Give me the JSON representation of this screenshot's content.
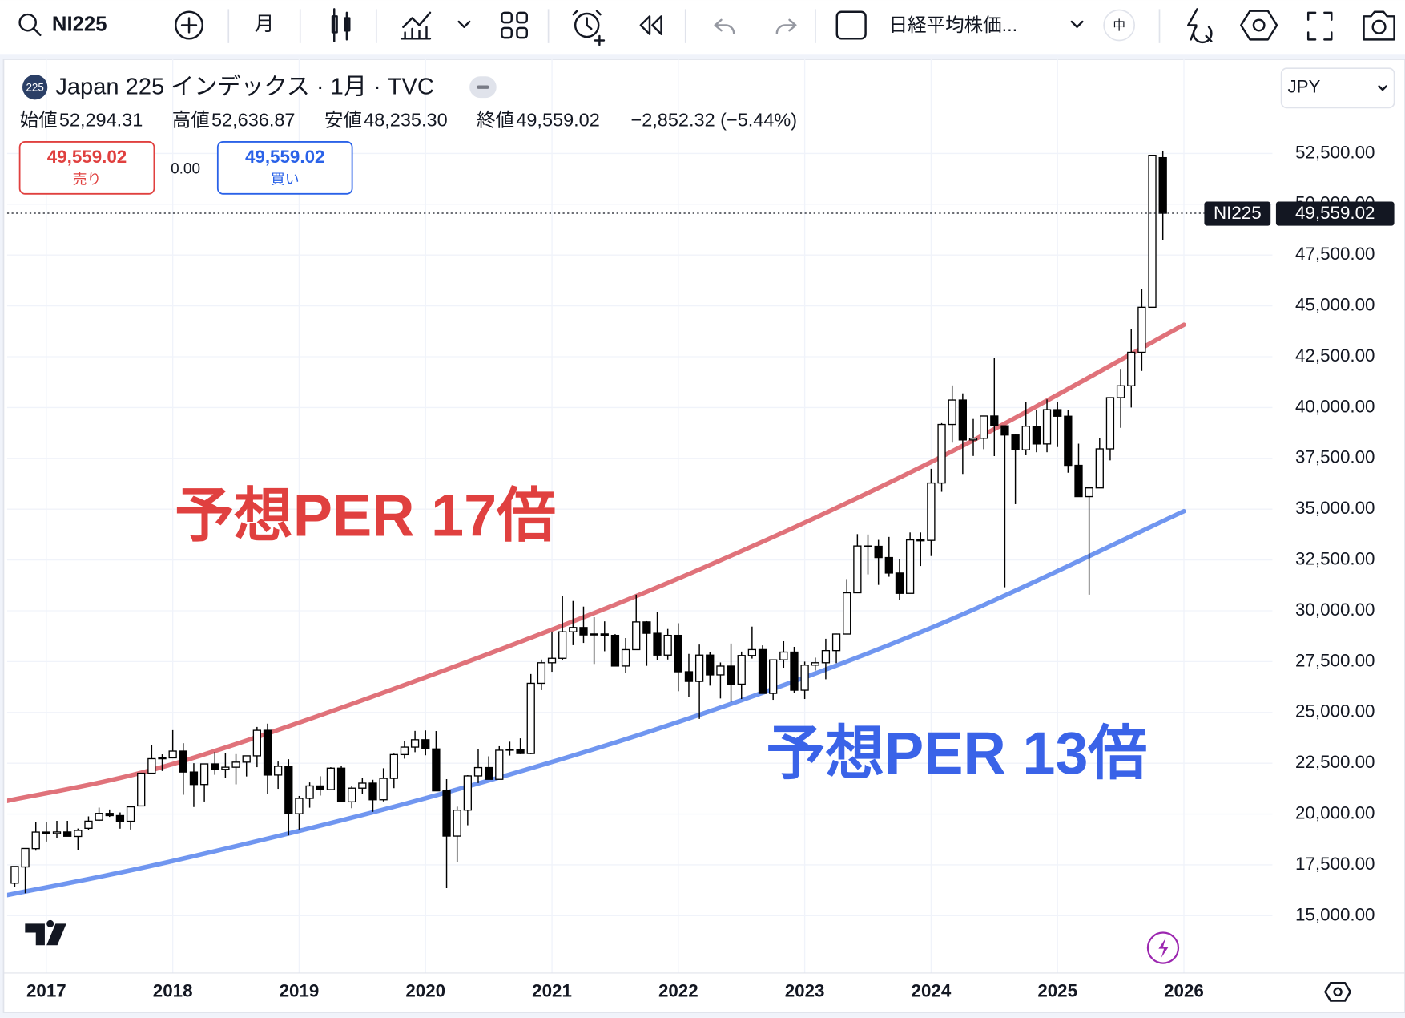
{
  "toolbar": {
    "symbol": "NI225",
    "interval": "月",
    "chart_name": "日経平均株価...",
    "size": "中"
  },
  "legend": {
    "badge": "225",
    "title": "Japan 225 インデックス · 1月 · TVC",
    "ohlc": [
      {
        "label": "始値",
        "value": "52,294.31"
      },
      {
        "label": "高値",
        "value": "52,636.87"
      },
      {
        "label": "安値",
        "value": "48,235.30"
      },
      {
        "label": "終値",
        "value": "49,559.02"
      }
    ],
    "change": "−2,852.32 (−5.44%)"
  },
  "trade": {
    "sell_price": "49,559.02",
    "sell": "売り",
    "spread": "0.00",
    "buy_price": "49,559.02",
    "buy": "買い"
  },
  "currency": "JPY",
  "chart_data": {
    "type": "candlestick",
    "x": [
      "2016-10",
      "2016-11",
      "2016-12",
      "2017-01",
      "2017-02",
      "2017-03",
      "2017-04",
      "2017-05",
      "2017-06",
      "2017-07",
      "2017-08",
      "2017-09",
      "2017-10",
      "2017-11",
      "2017-12",
      "2018-01",
      "2018-02",
      "2018-03",
      "2018-04",
      "2018-05",
      "2018-06",
      "2018-07",
      "2018-08",
      "2018-09",
      "2018-10",
      "2018-11",
      "2018-12",
      "2019-01",
      "2019-02",
      "2019-03",
      "2019-04",
      "2019-05",
      "2019-06",
      "2019-07",
      "2019-08",
      "2019-09",
      "2019-10",
      "2019-11",
      "2019-12",
      "2020-01",
      "2020-02",
      "2020-03",
      "2020-04",
      "2020-05",
      "2020-06",
      "2020-07",
      "2020-08",
      "2020-09",
      "2020-10",
      "2020-11",
      "2020-12",
      "2021-01",
      "2021-02",
      "2021-03",
      "2021-04",
      "2021-05",
      "2021-06",
      "2021-07",
      "2021-08",
      "2021-09",
      "2021-10",
      "2021-11",
      "2021-12",
      "2022-01",
      "2022-02",
      "2022-03",
      "2022-04",
      "2022-05",
      "2022-06",
      "2022-07",
      "2022-08",
      "2022-09",
      "2022-10",
      "2022-11",
      "2022-12",
      "2023-01",
      "2023-02",
      "2023-03",
      "2023-04",
      "2023-05",
      "2023-06",
      "2023-07",
      "2023-08",
      "2023-09",
      "2023-10",
      "2023-11",
      "2023-12",
      "2024-01",
      "2024-02",
      "2024-03",
      "2024-04",
      "2024-05",
      "2024-06",
      "2024-07",
      "2024-08",
      "2024-09",
      "2024-10",
      "2024-11",
      "2024-12",
      "2025-01",
      "2025-02",
      "2025-03",
      "2025-04",
      "2025-05",
      "2025-06",
      "2025-07",
      "2025-08",
      "2025-09",
      "2025-10",
      "2025-11"
    ],
    "open": [
      16600,
      17400,
      18300,
      19114,
      19041,
      19119,
      18900,
      19300,
      19700,
      20033,
      19925,
      19646,
      20400,
      22011,
      22725,
      22765,
      23098,
      22068,
      21454,
      22467,
      22202,
      22305,
      22553,
      22865,
      24120,
      21920,
      22351,
      20015,
      20773,
      21385,
      21206,
      22259,
      20601,
      21276,
      21522,
      20704,
      21756,
      22927,
      23294,
      23657,
      23205,
      21143,
      18917,
      20193,
      21878,
      22288,
      21710,
      23140,
      23185,
      22977,
      26433,
      27444,
      27663,
      28966,
      29178,
      28812,
      28860,
      28791,
      27283,
      28089,
      29452,
      28892,
      27821,
      28791,
      27001,
      26526,
      27821,
      26847,
      27279,
      26393,
      27801,
      28091,
      25937,
      27587,
      27968,
      26094,
      27327,
      27445,
      28041,
      28856,
      30887,
      33189,
      33172,
      32619,
      31857,
      30858,
      33486,
      33464,
      36286,
      39166,
      40369,
      38405,
      38487,
      39583,
      39101,
      38647,
      37919,
      39081,
      38208,
      39894,
      39572,
      37155,
      35617,
      36045,
      37965,
      40487,
      41069,
      42718,
      44932,
      52294
    ],
    "high": [
      17425,
      18308,
      19592,
      19615,
      19668,
      19668,
      19289,
      19883,
      20318,
      20225,
      20080,
      20400,
      22011,
      23382,
      22939,
      24129,
      23486,
      22502,
      22467,
      23050,
      23011,
      22949,
      22869,
      24286,
      24448,
      22583,
      22698,
      20892,
      21556,
      21860,
      22307,
      22362,
      21400,
      21784,
      21688,
      22255,
      22974,
      23608,
      24091,
      24115,
      24083,
      21719,
      20365,
      21916,
      23178,
      22843,
      23338,
      23559,
      23725,
      26890,
      27602,
      28979,
      30714,
      30485,
      30208,
      29685,
      29480,
      28852,
      28659,
      30795,
      29489,
      29960,
      29106,
      29388,
      27880,
      28338,
      27979,
      27458,
      28389,
      27993,
      29222,
      28300,
      27587,
      28502,
      28226,
      27500,
      27696,
      28623,
      28879,
      31560,
      33772,
      33753,
      33488,
      33634,
      32533,
      33853,
      33853,
      36984,
      39233,
      41087,
      40697,
      39437,
      39583,
      42426,
      39101,
      38700,
      40257,
      39884,
      40398,
      40279,
      39866,
      38220,
      36000,
      38494,
      40487,
      41900,
      43876,
      45852,
      52411,
      52636
    ],
    "low": [
      16400,
      16111,
      18200,
      18650,
      18805,
      18909,
      18224,
      19235,
      19661,
      19862,
      19280,
      19239,
      20400,
      21972,
      22119,
      22765,
      20950,
      20347,
      20617,
      21931,
      21788,
      21462,
      21851,
      22307,
      20971,
      21243,
      18948,
      19241,
      20315,
      20911,
      21206,
      20601,
      20289,
      21003,
      20110,
      20625,
      21276,
      22726,
      23044,
      22892,
      21142,
      16358,
      17646,
      19448,
      21529,
      21710,
      21710,
      22878,
      22948,
      22948,
      26098,
      27000,
      27585,
      28308,
      28419,
      27385,
      28010,
      27272,
      26954,
      28089,
      27293,
      27588,
      27602,
      26044,
      25775,
      24681,
      26319,
      25688,
      25520,
      25661,
      27650,
      25937,
      25621,
      27199,
      25953,
      25661,
      27062,
      26632,
      27427,
      28856,
      30887,
      31791,
      31275,
      31674,
      30538,
      30858,
      32205,
      32693,
      35854,
      38271,
      36733,
      37617,
      37950,
      37611,
      31156,
      35247,
      37651,
      37800,
      37800,
      38055,
      36793,
      35617,
      30792,
      36045,
      37400,
      39000,
      40000,
      41800,
      44932,
      48235
    ],
    "close": [
      17425,
      18308,
      19114,
      19041,
      19119,
      18909,
      19197,
      19651,
      20033,
      19925,
      19646,
      20356,
      22011,
      22725,
      22765,
      23098,
      22068,
      21454,
      22467,
      22202,
      22305,
      22553,
      22865,
      24120,
      21920,
      22351,
      20015,
      20773,
      21385,
      21206,
      22259,
      20601,
      21276,
      21522,
      20704,
      21756,
      22927,
      23294,
      23657,
      23205,
      21143,
      18917,
      20193,
      21878,
      22288,
      21710,
      23140,
      23185,
      22977,
      26433,
      27444,
      27663,
      28966,
      29178,
      28812,
      28860,
      28791,
      27283,
      28089,
      29452,
      28892,
      27821,
      28791,
      27001,
      26526,
      27821,
      26847,
      27279,
      26393,
      27801,
      28091,
      25937,
      27587,
      27968,
      26094,
      27327,
      27445,
      28041,
      28856,
      30887,
      33189,
      33172,
      32619,
      31857,
      30858,
      33486,
      33464,
      36286,
      39166,
      40369,
      38405,
      38487,
      39583,
      39101,
      38647,
      37919,
      39081,
      38208,
      39894,
      39572,
      37155,
      35617,
      36045,
      37965,
      40487,
      41069,
      42718,
      44932,
      52411,
      49559
    ],
    "up_color": "#ffffff",
    "down_color": "#000000",
    "series": [
      {
        "name": "予想PER 17倍",
        "color": "#e0727a",
        "label_color": "#e0403f",
        "x": [
          2016.69,
          2018,
          2020,
          2022,
          2024,
          2026
        ],
        "values": [
          20650,
          22460,
          26730,
          31590,
          37320,
          44070
        ]
      },
      {
        "name": "予想PER 13倍",
        "color": "#7096f0",
        "label_color": "#3a63e8",
        "x": [
          2016.69,
          2018,
          2020,
          2022,
          2024,
          2026
        ],
        "values": [
          16015,
          17690,
          20780,
          24530,
          29160,
          34900
        ]
      }
    ],
    "last_price": {
      "symbol": "NI225",
      "label": "49,559.02"
    },
    "xlim": [
      2016.69,
      2026.7
    ],
    "xticks": [
      2017,
      2018,
      2019,
      2020,
      2021,
      2022,
      2023,
      2024,
      2025,
      2026
    ],
    "ylim": [
      12180,
      57130
    ],
    "yticks": [
      {
        "value": 15000,
        "label": "15,000.00"
      },
      {
        "value": 17500,
        "label": "17,500.00"
      },
      {
        "value": 20000,
        "label": "20,000.00"
      },
      {
        "value": 22500,
        "label": "22,500.00"
      },
      {
        "value": 25000,
        "label": "25,000.00"
      },
      {
        "value": 27500,
        "label": "27,500.00"
      },
      {
        "value": 30000,
        "label": "30,000.00"
      },
      {
        "value": 32500,
        "label": "32,500.00"
      },
      {
        "value": 35000,
        "label": "35,000.00"
      },
      {
        "value": 37500,
        "label": "37,500.00"
      },
      {
        "value": 40000,
        "label": "40,000.00"
      },
      {
        "value": 42500,
        "label": "42,500.00"
      },
      {
        "value": 45000,
        "label": "45,000.00"
      },
      {
        "value": 47500,
        "label": "47,500.00"
      },
      {
        "value": 50000,
        "label": "50,000.00"
      },
      {
        "value": 52500,
        "label": "52,500.00"
      }
    ],
    "grid": true
  }
}
